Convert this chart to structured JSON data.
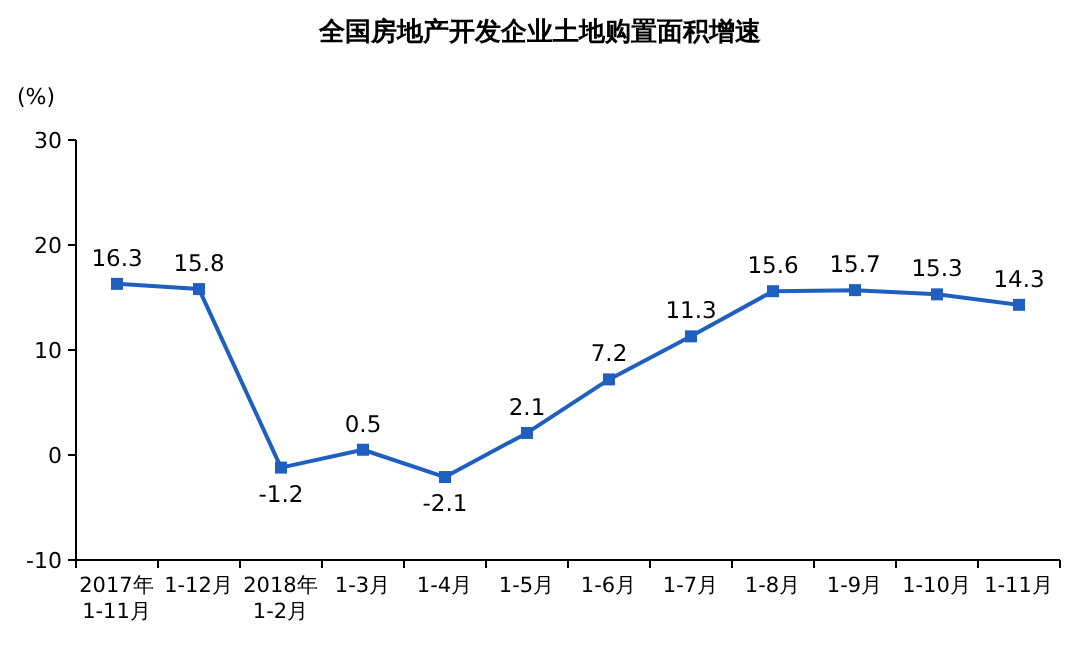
{
  "chart_data": {
    "type": "line",
    "title": "全国房地产开发企业土地购置面积增速",
    "ylabel": "(%)",
    "categories": [
      "2017年\n1-11月",
      "1-12月",
      "2018年\n1-2月",
      "1-3月",
      "1-4月",
      "1-5月",
      "1-6月",
      "1-7月",
      "1-8月",
      "1-9月",
      "1-10月",
      "1-11月"
    ],
    "series": [
      {
        "color": "#1f5fbf",
        "values": [
          16.3,
          15.8,
          -1.2,
          0.5,
          -2.1,
          2.1,
          7.2,
          11.3,
          15.6,
          15.7,
          15.3,
          14.3
        ]
      }
    ],
    "ylim": [
      -10,
      30
    ],
    "yticks": [
      -10,
      0,
      10,
      20,
      30
    ],
    "marker": "square",
    "data_labels": true,
    "grid": false
  }
}
